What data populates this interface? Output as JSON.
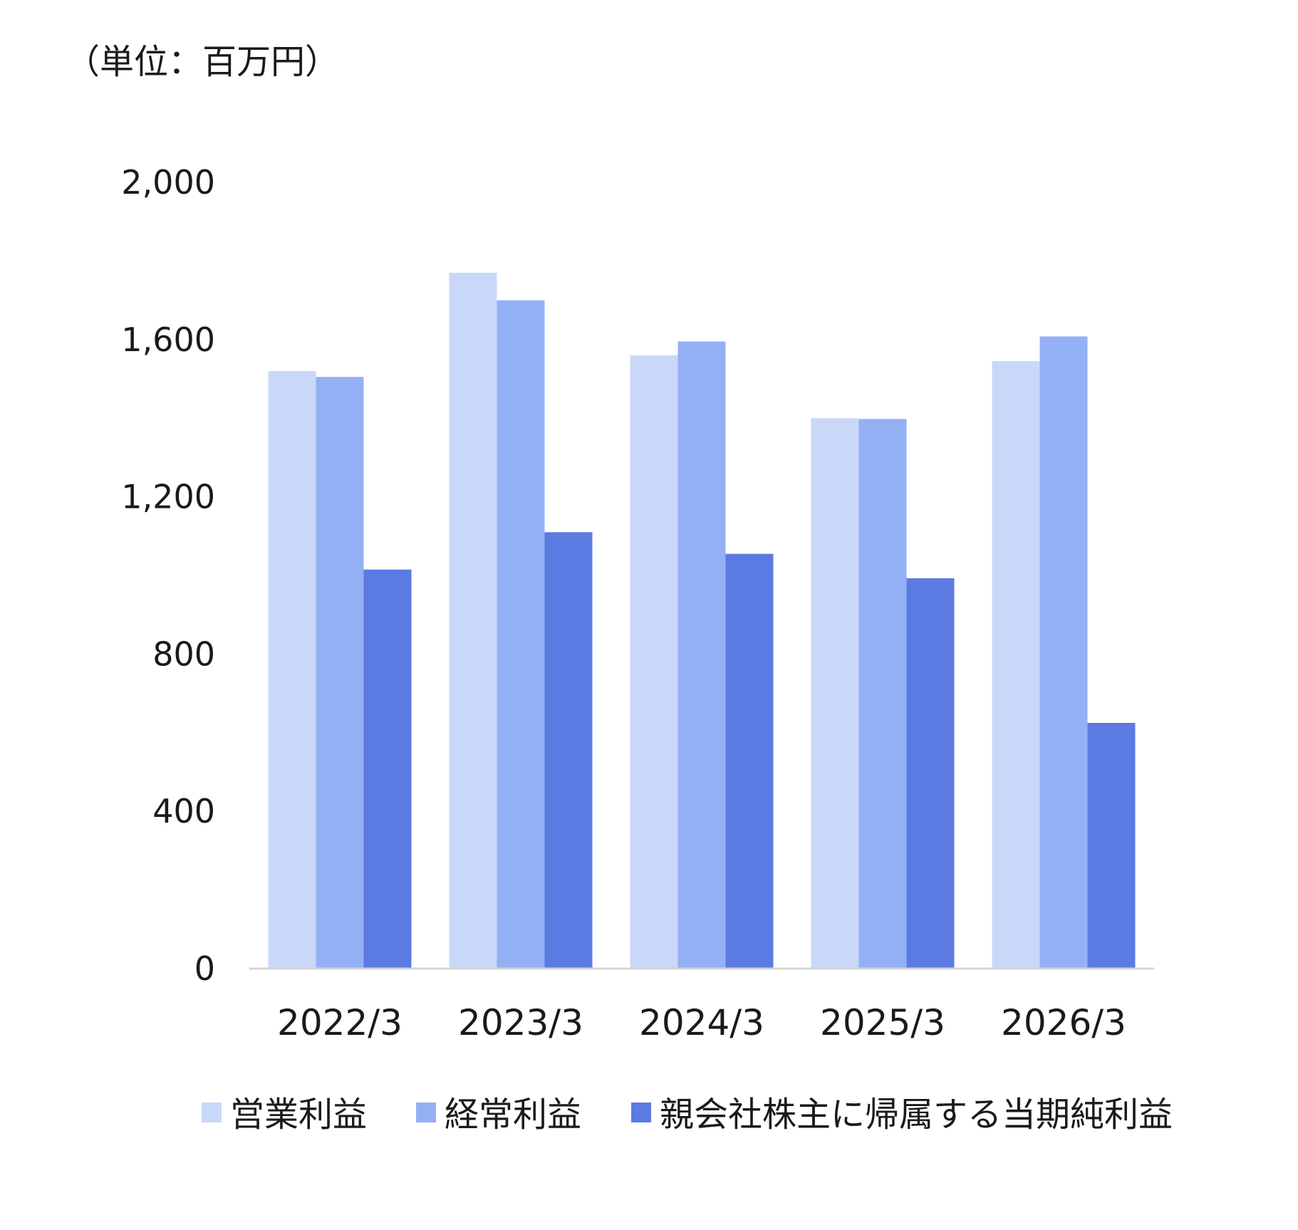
{
  "unit_label": "（単位：百万円）",
  "colors": {
    "operating_profit": "#c9d8f8",
    "ordinary_profit": "#94b0f4",
    "net_profit": "#5b7be2",
    "axis": "#d4d4d4"
  },
  "chart_data": {
    "type": "bar",
    "ylim": [
      0,
      2000
    ],
    "yticks": [
      0,
      400,
      800,
      1200,
      1600,
      2000
    ],
    "ytick_labels": [
      "0",
      "400",
      "800",
      "1,200",
      "1,600",
      "2,000"
    ],
    "categories": [
      "2022/3",
      "2023/3",
      "2024/3",
      "2025/3",
      "2026/3"
    ],
    "series": [
      {
        "name": "営業利益",
        "values": [
          1520,
          1770,
          1560,
          1400,
          1545
        ]
      },
      {
        "name": "経常利益",
        "values": [
          1505,
          1700,
          1595,
          1398,
          1608
        ]
      },
      {
        "name": "親会社株主に帰属する当期純利益",
        "values": [
          1015,
          1110,
          1055,
          993,
          625
        ]
      }
    ],
    "grid": false,
    "legend_position": "bottom"
  }
}
